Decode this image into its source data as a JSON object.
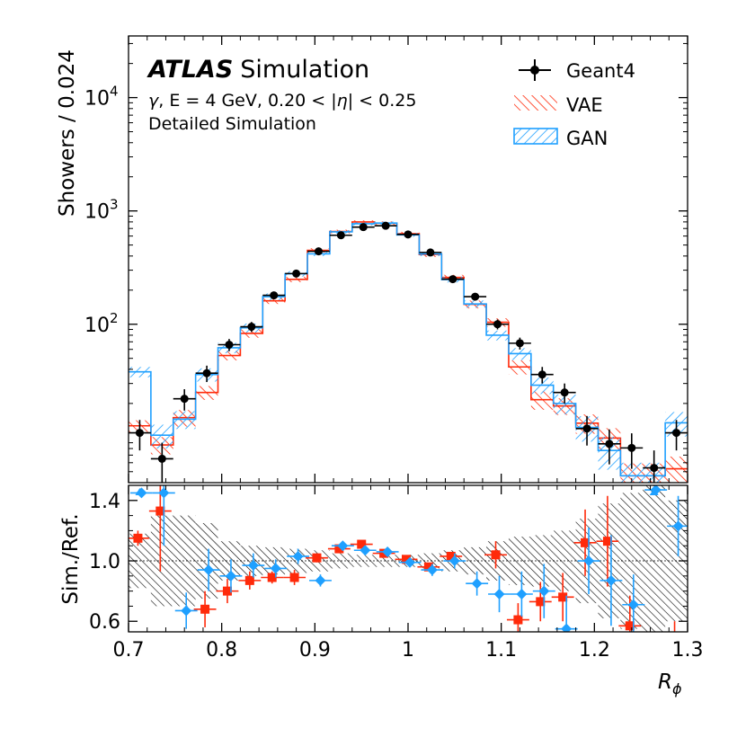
{
  "chart_data": [
    {
      "type": "histogram",
      "panel": "main",
      "ylabel": "Showers / 0.024",
      "yscale": "log",
      "ylim": [
        4,
        35000
      ],
      "xlim": [
        0.7,
        1.3
      ],
      "grid": false,
      "legend_position": "top-right",
      "yticks": [
        {
          "value": 100,
          "base": "10",
          "exp": "2"
        },
        {
          "value": 1000,
          "base": "10",
          "exp": "3"
        },
        {
          "value": 10000,
          "base": "10",
          "exp": "4"
        }
      ],
      "annotations": {
        "atlas": "ATLAS",
        "simulation": "Simulation",
        "line1_symbol": "γ",
        "line1_text_a": ", E = 4 GeV, 0.20 < |",
        "line1_symbol2": "η",
        "line1_text_b": "| < 0.25",
        "line2": "Detailed Simulation"
      },
      "bin_edges": [
        0.7,
        0.724,
        0.748,
        0.772,
        0.796,
        0.82,
        0.844,
        0.868,
        0.892,
        0.916,
        0.94,
        0.964,
        0.988,
        1.012,
        1.036,
        1.06,
        1.084,
        1.108,
        1.132,
        1.156,
        1.18,
        1.204,
        1.228,
        1.252,
        1.276,
        1.3
      ],
      "series": [
        {
          "name": "Geant4",
          "style": "points",
          "color": "#000000",
          "values": [
            11,
            6.5,
            22,
            37,
            66,
            95,
            180,
            280,
            440,
            610,
            720,
            740,
            620,
            430,
            250,
            175,
            100,
            68,
            36,
            25,
            12,
            8.8,
            8.1,
            5.4,
            11
          ],
          "errors": [
            3.3,
            2.5,
            4.7,
            6.1,
            8.1,
            9.7,
            13.4,
            16.7,
            21,
            24.7,
            26.8,
            27.2,
            24.9,
            20.7,
            15.8,
            13.2,
            10,
            8.2,
            6,
            5,
            3.5,
            3,
            2.8,
            2.3,
            3.3
          ]
        },
        {
          "name": "VAE",
          "style": "hatched-step",
          "color": "#ff2a0a",
          "values": [
            12.7,
            8.6,
            15,
            25,
            53,
            83,
            161,
            249,
            449,
            658,
            799,
            780,
            629,
            412,
            259,
            150,
            104,
            42,
            21.6,
            19,
            13.4,
            9.9,
            4.6,
            4.6,
            5.3
          ],
          "errors": [
            1.5,
            1.5,
            2.5,
            3.5,
            5,
            7,
            10,
            14,
            20,
            25,
            28,
            28,
            25,
            20,
            14,
            12,
            9,
            6,
            4,
            3.2,
            2.6,
            2.2,
            1.3,
            1.3,
            1.5
          ]
        },
        {
          "name": "GAN",
          "style": "hatched-step",
          "color": "#1fa0ff",
          "values": [
            38,
            10.5,
            14.5,
            36,
            62,
            93,
            175,
            279,
            418,
            654,
            770,
            781,
            614,
            417,
            248,
            151,
            80,
            55,
            29,
            20,
            12.3,
            7.7,
            4.6,
            4.6,
            13.5
          ],
          "errors": [
            4,
            2.5,
            2.6,
            4.8,
            6.6,
            8.5,
            11.8,
            15.1,
            18.5,
            23.1,
            25,
            25.2,
            22.4,
            18.4,
            14.2,
            11.1,
            8,
            6.6,
            4.8,
            4,
            3.1,
            2.5,
            1.4,
            1.4,
            3.3
          ]
        }
      ]
    },
    {
      "type": "ratio",
      "panel": "ratio",
      "xlabel": "R",
      "xlabel_sub": "ϕ",
      "ylabel": "Sim./Ref.",
      "ylim": [
        0.53,
        1.5
      ],
      "xlim": [
        0.7,
        1.3
      ],
      "reference_line": 1.0,
      "xticks": [
        {
          "value": 0.7,
          "label": "0.7"
        },
        {
          "value": 0.8,
          "label": "0.8"
        },
        {
          "value": 0.9,
          "label": "0.9"
        },
        {
          "value": 1.0,
          "label": "1"
        },
        {
          "value": 1.1,
          "label": "1.1"
        },
        {
          "value": 1.2,
          "label": "1.2"
        },
        {
          "value": 1.3,
          "label": "1.3"
        }
      ],
      "yticks": [
        {
          "value": 0.6,
          "label": "0.6"
        },
        {
          "value": 1.0,
          "label": "1.0"
        },
        {
          "value": 1.4,
          "label": "1.4"
        }
      ],
      "geant4_band_halfwidth": [
        0.18,
        0.3,
        0.3,
        0.25,
        0.13,
        0.1,
        0.09,
        0.08,
        0.07,
        0.05,
        0.04,
        0.04,
        0.04,
        0.05,
        0.07,
        0.09,
        0.13,
        0.16,
        0.17,
        0.2,
        0.28,
        0.38,
        0.45,
        0.5,
        0.4
      ],
      "series": [
        {
          "name": "VAE",
          "color": "#ff2a0a",
          "marker": "square",
          "values": [
            1.15,
            1.33,
            null,
            0.68,
            0.8,
            0.87,
            0.89,
            0.89,
            1.02,
            1.08,
            1.11,
            1.05,
            1.01,
            0.96,
            1.03,
            null,
            1.04,
            0.61,
            0.73,
            0.76,
            1.12,
            1.13,
            0.57,
            null,
            0.5
          ],
          "errors": [
            0.05,
            0.4,
            0,
            0.12,
            0.08,
            0.06,
            0.04,
            0.05,
            0.03,
            0.02,
            0.02,
            0.02,
            0.02,
            0.02,
            0.03,
            0,
            0.09,
            0.11,
            0.13,
            0.16,
            0.22,
            0.3,
            0.2,
            0,
            0.1
          ]
        },
        {
          "name": "GAN",
          "color": "#1fa0ff",
          "marker": "diamond",
          "values": [
            1.45,
            1.45,
            0.67,
            0.94,
            0.9,
            0.97,
            0.95,
            1.03,
            0.87,
            1.1,
            1.07,
            1.06,
            0.99,
            0.94,
            1.0,
            0.85,
            0.78,
            0.78,
            0.8,
            0.55,
            1.0,
            0.87,
            0.71,
            1.47,
            1.23
          ],
          "errors": [
            0,
            0.35,
            0.12,
            0.14,
            0.11,
            0.08,
            0.06,
            0.05,
            0.04,
            0.03,
            0.02,
            0.02,
            0.03,
            0.04,
            0.05,
            0.08,
            0.12,
            0.15,
            0.18,
            0.22,
            0.22,
            0.3,
            0.2,
            0,
            0.2
          ]
        }
      ]
    }
  ]
}
